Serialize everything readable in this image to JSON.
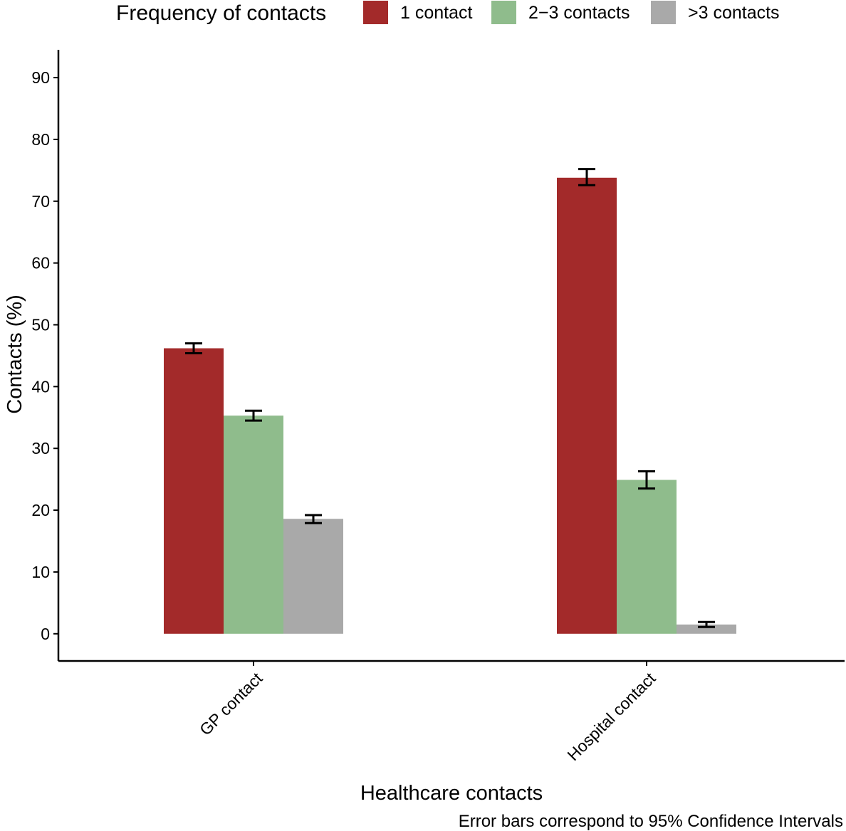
{
  "chart_data": {
    "type": "bar",
    "categories": [
      "GP contact",
      "Hospital contact"
    ],
    "series": [
      {
        "name": "1 contact",
        "color": "#a32a2a",
        "values": [
          46.2,
          73.8
        ],
        "ci_low": [
          45.4,
          72.6
        ],
        "ci_high": [
          47.0,
          75.2
        ]
      },
      {
        "name": "2−3 contacts",
        "color": "#8fbc8c",
        "values": [
          35.3,
          24.9
        ],
        "ci_low": [
          34.5,
          23.5
        ],
        "ci_high": [
          36.1,
          26.3
        ]
      },
      {
        "name": ">3 contacts",
        "color": "#a9a9a9",
        "values": [
          18.6,
          1.5
        ],
        "ci_low": [
          17.9,
          1.1
        ],
        "ci_high": [
          19.2,
          1.9
        ]
      }
    ],
    "legend_title": "Frequency of contacts",
    "legend_position": "top",
    "xlabel": "Healthcare contacts",
    "ylabel": "Contacts (%)",
    "yticks": [
      0,
      10,
      20,
      30,
      40,
      50,
      60,
      70,
      80,
      90
    ],
    "ylim": [
      -4.4,
      94.5
    ],
    "grid": false,
    "caption": "Error bars correspond to 95% Confidence Intervals"
  }
}
